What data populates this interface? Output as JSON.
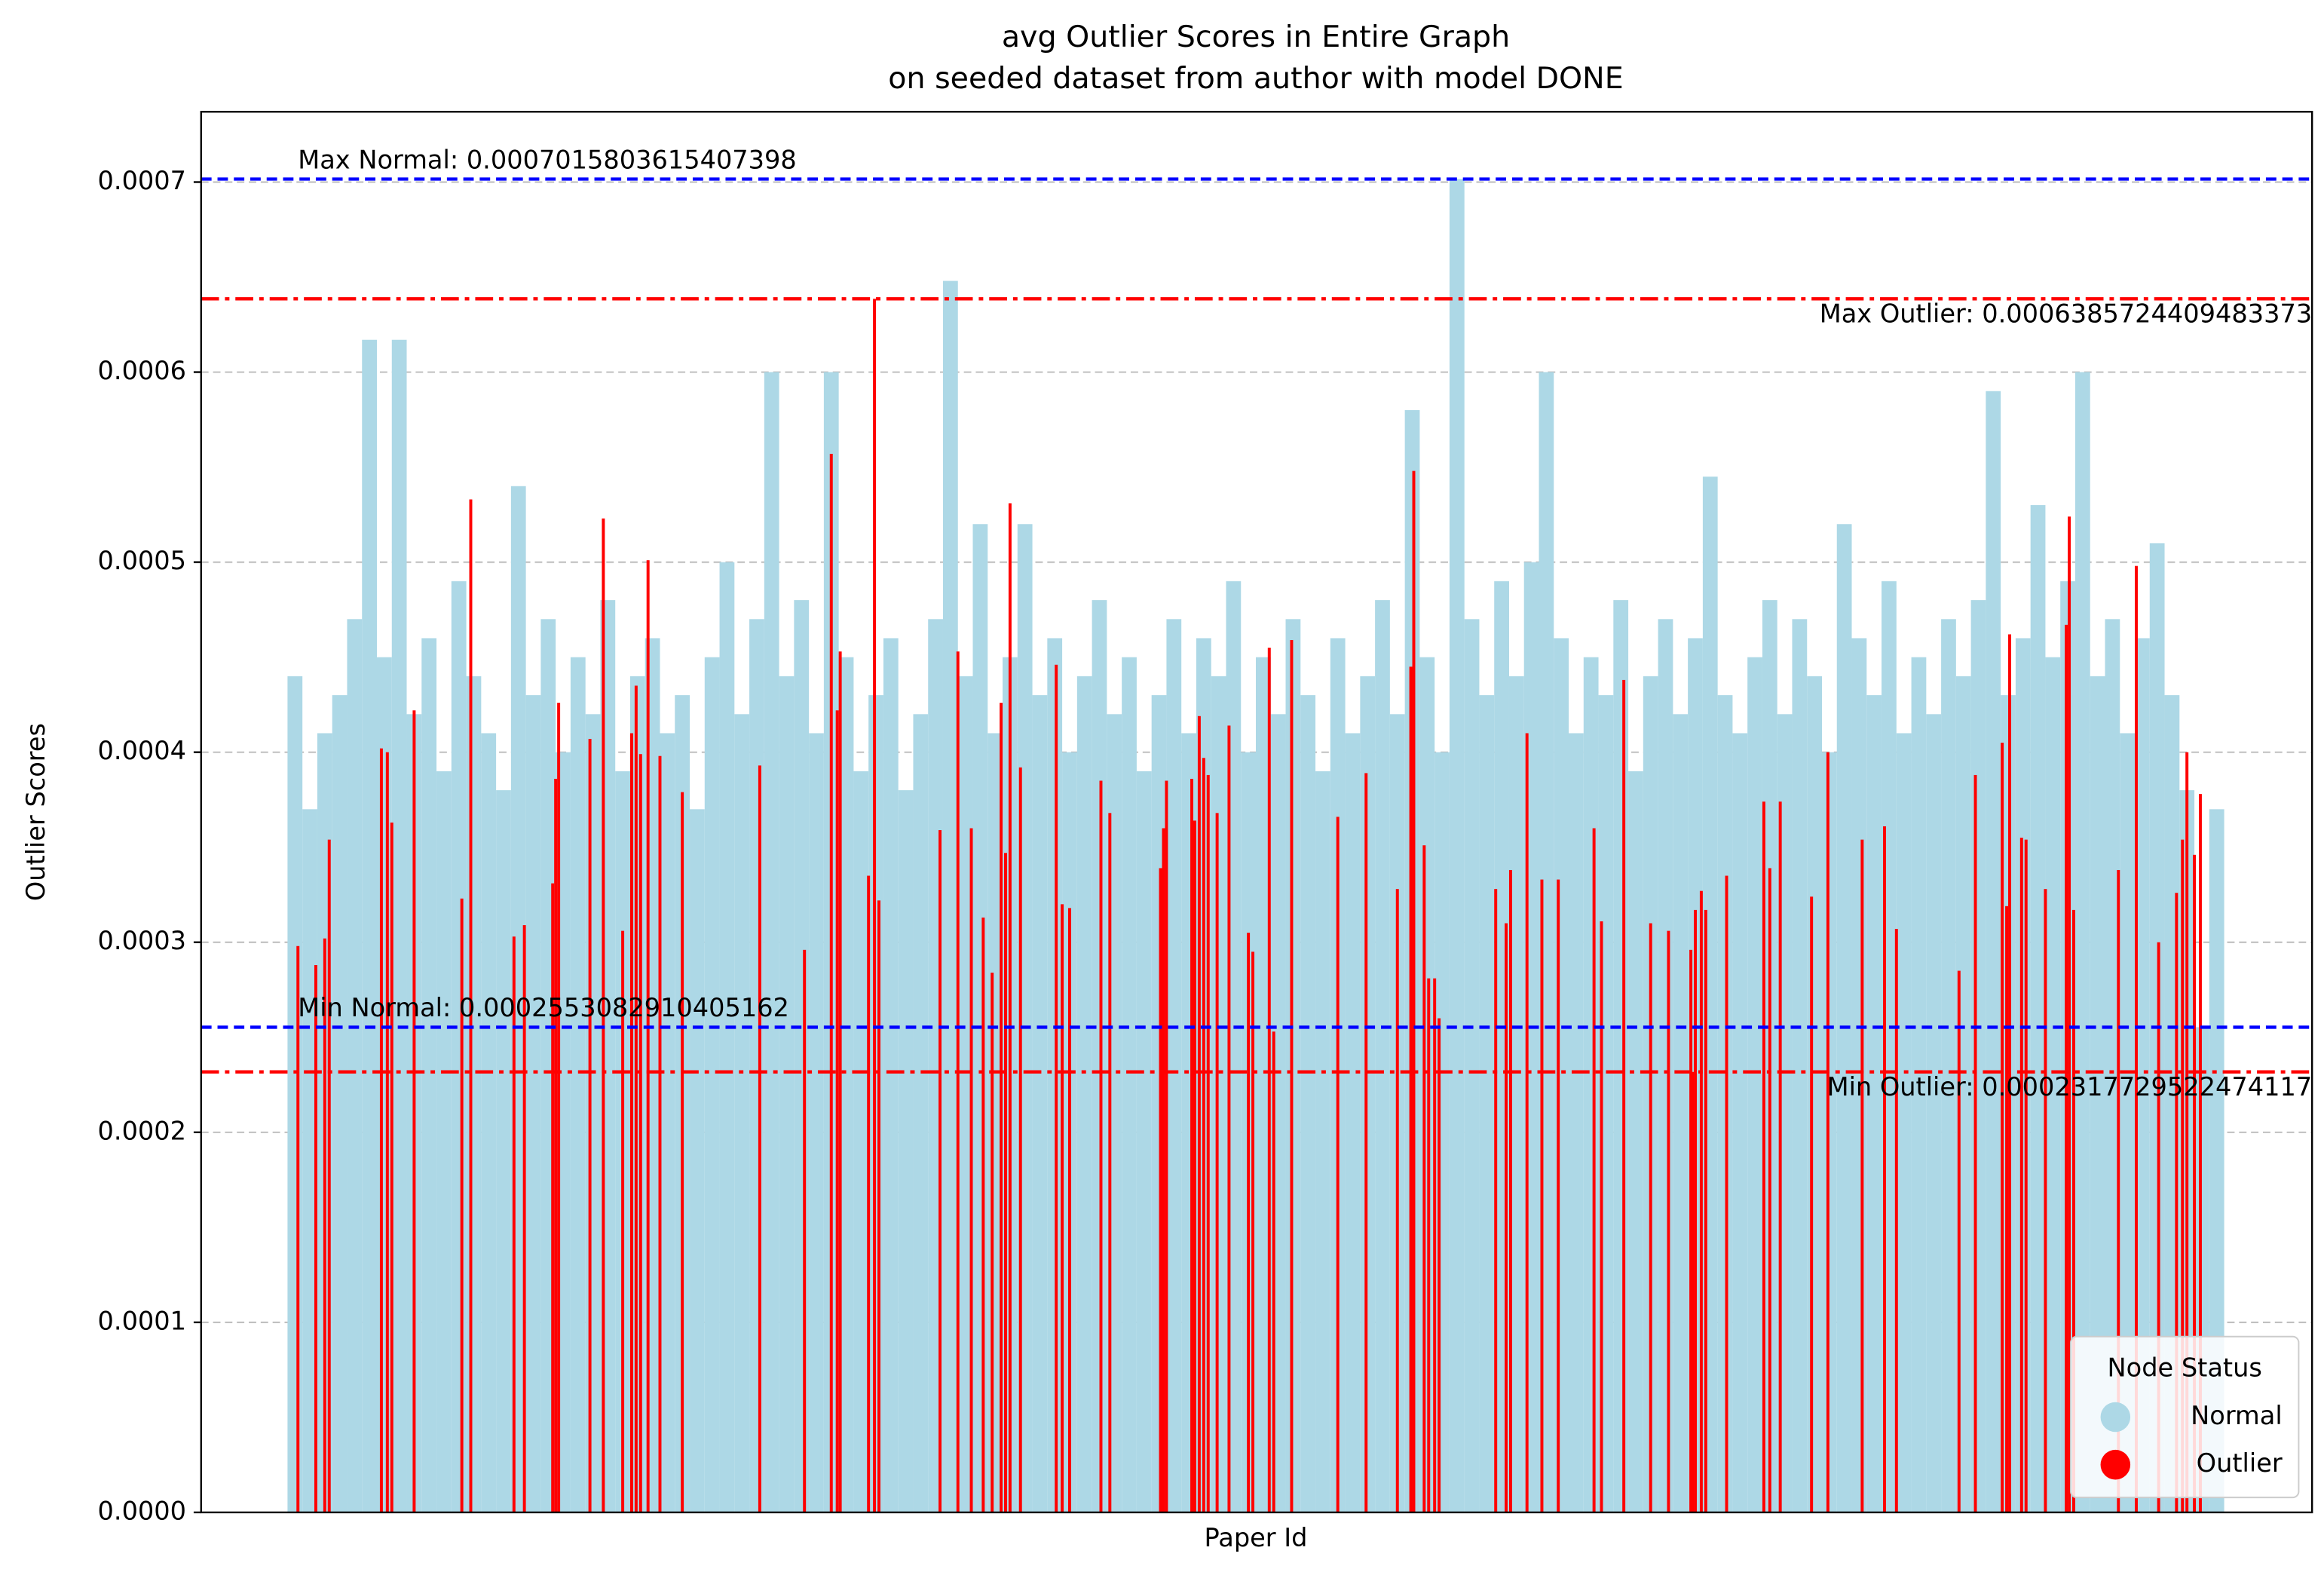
{
  "chart_data": {
    "type": "bar",
    "title": "avg Outlier Scores in Entire Graph",
    "subtitle": "on seeded dataset from author with model DONE",
    "x_label": "Paper Id",
    "y_label": "Outlier Scores",
    "xlim": [
      -126,
      2708
    ],
    "ylim": [
      0,
      0.000737
    ],
    "yticks": [
      {
        "value": 0,
        "label": "0.0000"
      },
      0.0001,
      0.0002,
      0.0003,
      0.0004,
      0.0005,
      0.0006,
      0.0007
    ],
    "grid": true,
    "legend_title": "Node Status",
    "legend_position": "lower right",
    "series": [
      {
        "name": "Normal",
        "color": "#add8e6",
        "x": [
          0,
          20,
          40,
          60,
          80,
          100,
          120,
          140,
          160,
          180,
          200,
          220,
          240,
          260,
          280,
          300,
          320,
          340,
          360,
          380,
          400,
          420,
          440,
          460,
          480,
          500,
          520,
          540,
          560,
          580,
          600,
          620,
          640,
          660,
          680,
          700,
          720,
          740,
          760,
          780,
          800,
          820,
          840,
          860,
          880,
          900,
          920,
          940,
          960,
          980,
          1000,
          1020,
          1040,
          1060,
          1080,
          1100,
          1120,
          1140,
          1160,
          1180,
          1200,
          1220,
          1240,
          1260,
          1280,
          1300,
          1320,
          1340,
          1360,
          1380,
          1400,
          1420,
          1440,
          1460,
          1480,
          1500,
          1520,
          1540,
          1560,
          1580,
          1600,
          1620,
          1640,
          1660,
          1680,
          1700,
          1720,
          1740,
          1760,
          1780,
          1800,
          1820,
          1840,
          1860,
          1880,
          1900,
          1920,
          1940,
          1960,
          1980,
          2000,
          2020,
          2040,
          2060,
          2080,
          2100,
          2120,
          2140,
          2160,
          2180,
          2200,
          2220,
          2240,
          2260,
          2280,
          2300,
          2320,
          2340,
          2360,
          2380,
          2400,
          2420,
          2440,
          2460,
          2480,
          2500,
          2520,
          2540,
          2560,
          2580
        ],
        "values": [
          0.00044,
          0.00037,
          0.00041,
          0.00043,
          0.00047,
          0.000617,
          0.00045,
          0.000617,
          0.00042,
          0.00046,
          0.00039,
          0.00049,
          0.00044,
          0.00041,
          0.00038,
          0.00054,
          0.00043,
          0.00047,
          0.0004,
          0.00045,
          0.00042,
          0.00048,
          0.00039,
          0.00044,
          0.00046,
          0.00041,
          0.00043,
          0.00037,
          0.00045,
          0.0005,
          0.00042,
          0.00047,
          0.0006,
          0.00044,
          0.00048,
          0.00041,
          0.0006,
          0.00045,
          0.00039,
          0.00043,
          0.00046,
          0.00038,
          0.00042,
          0.00047,
          0.000648,
          0.00044,
          0.00052,
          0.00041,
          0.00045,
          0.00052,
          0.00043,
          0.00046,
          0.0004,
          0.00044,
          0.00048,
          0.00042,
          0.00045,
          0.00039,
          0.00043,
          0.00047,
          0.00041,
          0.00046,
          0.00044,
          0.00049,
          0.0004,
          0.00045,
          0.00042,
          0.00047,
          0.00043,
          0.00039,
          0.00046,
          0.00041,
          0.00044,
          0.00048,
          0.00042,
          0.00058,
          0.00045,
          0.0004,
          0.0007015803615407398,
          0.00047,
          0.00043,
          0.00049,
          0.00044,
          0.0005,
          0.0006,
          0.00046,
          0.00041,
          0.00045,
          0.00043,
          0.00048,
          0.00039,
          0.00044,
          0.00047,
          0.00042,
          0.00046,
          0.000545,
          0.00043,
          0.00041,
          0.00045,
          0.00048,
          0.00042,
          0.00047,
          0.00044,
          0.0004,
          0.00052,
          0.00046,
          0.00043,
          0.00049,
          0.00041,
          0.00045,
          0.00042,
          0.00047,
          0.00044,
          0.00048,
          0.00059,
          0.00043,
          0.00046,
          0.00053,
          0.00045,
          0.00049,
          0.0006,
          0.00044,
          0.00047,
          0.00041,
          0.00046,
          0.00051,
          0.00043,
          0.00038,
          0.0002553082910405162,
          0.00037
        ]
      },
      {
        "name": "Outlier",
        "color": "#ff0000",
        "x": [
          4,
          28,
          40,
          46,
          116,
          124,
          130,
          160,
          224,
          236,
          294,
          308,
          346,
          350,
          354,
          396,
          414,
          440,
          452,
          458,
          464,
          474,
          490,
          520,
          624,
          684,
          720,
          728,
          732,
          770,
          778,
          784,
          866,
          890,
          908,
          924,
          936,
          948,
          954,
          960,
          974,
          1022,
          1030,
          1040,
          1082,
          1094,
          1162,
          1166,
          1170,
          1204,
          1208,
          1214,
          1220,
          1226,
          1238,
          1254,
          1280,
          1286,
          1308,
          1314,
          1338,
          1400,
          1438,
          1480,
          1498,
          1502,
          1516,
          1522,
          1530,
          1536,
          1612,
          1626,
          1632,
          1654,
          1674,
          1696,
          1744,
          1754,
          1784,
          1820,
          1844,
          1874,
          1876,
          1880,
          1888,
          1894,
          1922,
          1972,
          1980,
          1994,
          2036,
          2058,
          2104,
          2134,
          2150,
          2234,
          2256,
          2292,
          2298,
          2302,
          2318,
          2324,
          2350,
          2378,
          2382,
          2388,
          2448,
          2472,
          2502,
          2526,
          2534,
          2540,
          2550,
          2558
        ],
        "values": [
          0.000298,
          0.000288,
          0.000302,
          0.000354,
          0.000402,
          0.0004,
          0.000363,
          0.000422,
          0.000323,
          0.000533,
          0.000303,
          0.000309,
          0.000331,
          0.000386,
          0.000426,
          0.000407,
          0.000523,
          0.000306,
          0.00041,
          0.000435,
          0.000399,
          0.000501,
          0.000398,
          0.000379,
          0.000393,
          0.000296,
          0.000557,
          0.000422,
          0.000453,
          0.000335,
          0.0006385724409483373,
          0.000322,
          0.000359,
          0.000453,
          0.00036,
          0.000313,
          0.000284,
          0.000426,
          0.000347,
          0.000531,
          0.000392,
          0.000446,
          0.00032,
          0.000318,
          0.000385,
          0.000368,
          0.000339,
          0.00036,
          0.000385,
          0.000386,
          0.000364,
          0.000419,
          0.000397,
          0.000388,
          0.000368,
          0.000414,
          0.000305,
          0.000295,
          0.000455,
          0.000253,
          0.000459,
          0.000366,
          0.000389,
          0.000328,
          0.000445,
          0.000548,
          0.000351,
          0.000281,
          0.000281,
          0.00026,
          0.000328,
          0.00031,
          0.000338,
          0.00041,
          0.000333,
          0.000333,
          0.00036,
          0.000311,
          0.000438,
          0.00031,
          0.000306,
          0.000296,
          0.0002317729522474117,
          0.000317,
          0.000327,
          0.000317,
          0.000335,
          0.000374,
          0.000339,
          0.000374,
          0.000324,
          0.0004,
          0.000354,
          0.000361,
          0.000307,
          0.000285,
          0.000388,
          0.000405,
          0.000319,
          0.000462,
          0.000355,
          0.000354,
          0.000328,
          0.000467,
          0.000524,
          0.000317,
          0.000338,
          0.000498,
          0.0003,
          0.000326,
          0.000354,
          0.0004,
          0.000346,
          0.000378
        ]
      }
    ],
    "reference_lines": [
      {
        "label": "Max Normal: 0.0007015803615407398",
        "value": 0.0007015803615407398,
        "color": "#0000ff",
        "style": "dashed",
        "label_side": "left"
      },
      {
        "label": "Min Normal: 0.0002553082910405162",
        "value": 0.0002553082910405162,
        "color": "#0000ff",
        "style": "dashed",
        "label_side": "left"
      },
      {
        "label": "Max Outlier: 0.0006385724409483373",
        "value": 0.0006385724409483373,
        "color": "#ff0000",
        "style": "dashdot",
        "label_side": "right"
      },
      {
        "label": "Min Outlier: 0.0002317729522474117",
        "value": 0.0002317729522474117,
        "color": "#ff0000",
        "style": "dashdot",
        "label_side": "right"
      }
    ]
  }
}
